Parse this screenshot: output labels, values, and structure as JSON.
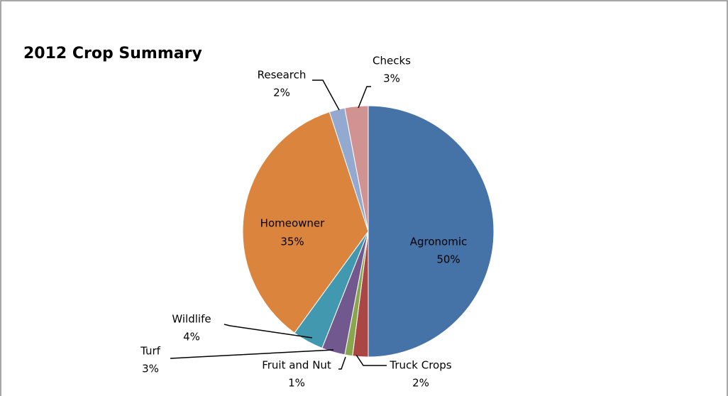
{
  "chart_data": {
    "type": "pie",
    "title": "2012 Crop Summary",
    "categories": [
      "Agronomic",
      "Truck Crops",
      "Fruit and Nut",
      "Turf",
      "Wildlife",
      "Homeowner",
      "Research",
      "Checks"
    ],
    "values": [
      50,
      2,
      1,
      3,
      4,
      35,
      2,
      3
    ],
    "value_labels": [
      "50%",
      "2%",
      "1%",
      "3%",
      "4%",
      "35%",
      "2%",
      "3%"
    ],
    "colors": [
      "#4572a7",
      "#aa4643",
      "#89a54e",
      "#71588f",
      "#4198af",
      "#db843d",
      "#93a9cf",
      "#d19392"
    ]
  }
}
